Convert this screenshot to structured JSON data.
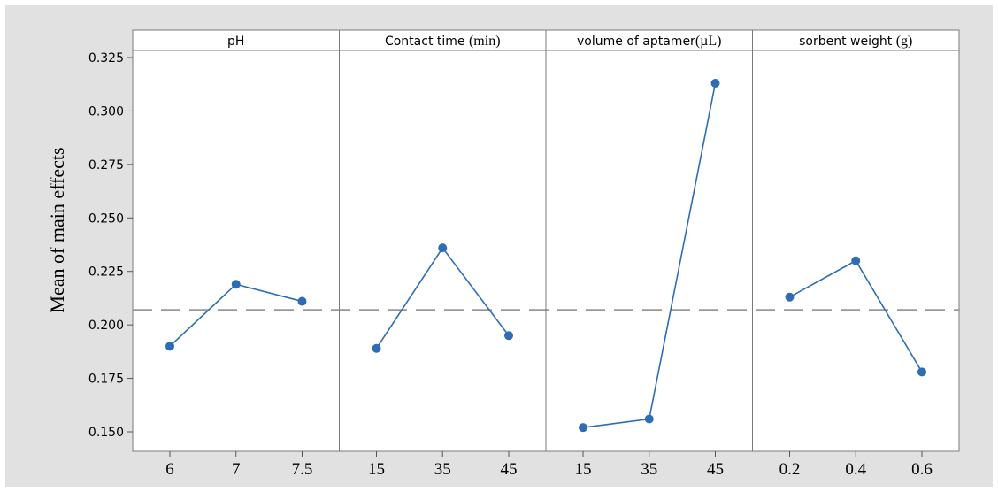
{
  "chart_data": {
    "type": "line",
    "ylabel": "Mean of main effects",
    "ylim": [
      0.145,
      0.328
    ],
    "yticks": [
      "0.150",
      "0.175",
      "0.200",
      "0.225",
      "0.250",
      "0.275",
      "0.300",
      "0.325"
    ],
    "reference_line": 0.207,
    "grid": false,
    "colors": {
      "series": "#2e6db4",
      "reference": "#999999",
      "background": "#e1e1e1"
    },
    "panels": [
      {
        "title_sans": "pH",
        "title_serif": "",
        "categories": [
          "6",
          "7",
          "7.5"
        ],
        "values": [
          0.19,
          0.219,
          0.211
        ]
      },
      {
        "title_sans": "Contact time ",
        "title_serif": "(min)",
        "categories": [
          "15",
          "35",
          "45"
        ],
        "values": [
          0.189,
          0.236,
          0.195
        ]
      },
      {
        "title_sans": "volume of aptamer",
        "title_serif": "(µL)",
        "categories": [
          "15",
          "35",
          "45"
        ],
        "values": [
          0.152,
          0.156,
          0.313
        ]
      },
      {
        "title_sans": "sorbent weight ",
        "title_serif": "(g)",
        "categories": [
          "0.2",
          "0.4",
          "0.6"
        ],
        "values": [
          0.213,
          0.23,
          0.178
        ]
      }
    ]
  }
}
